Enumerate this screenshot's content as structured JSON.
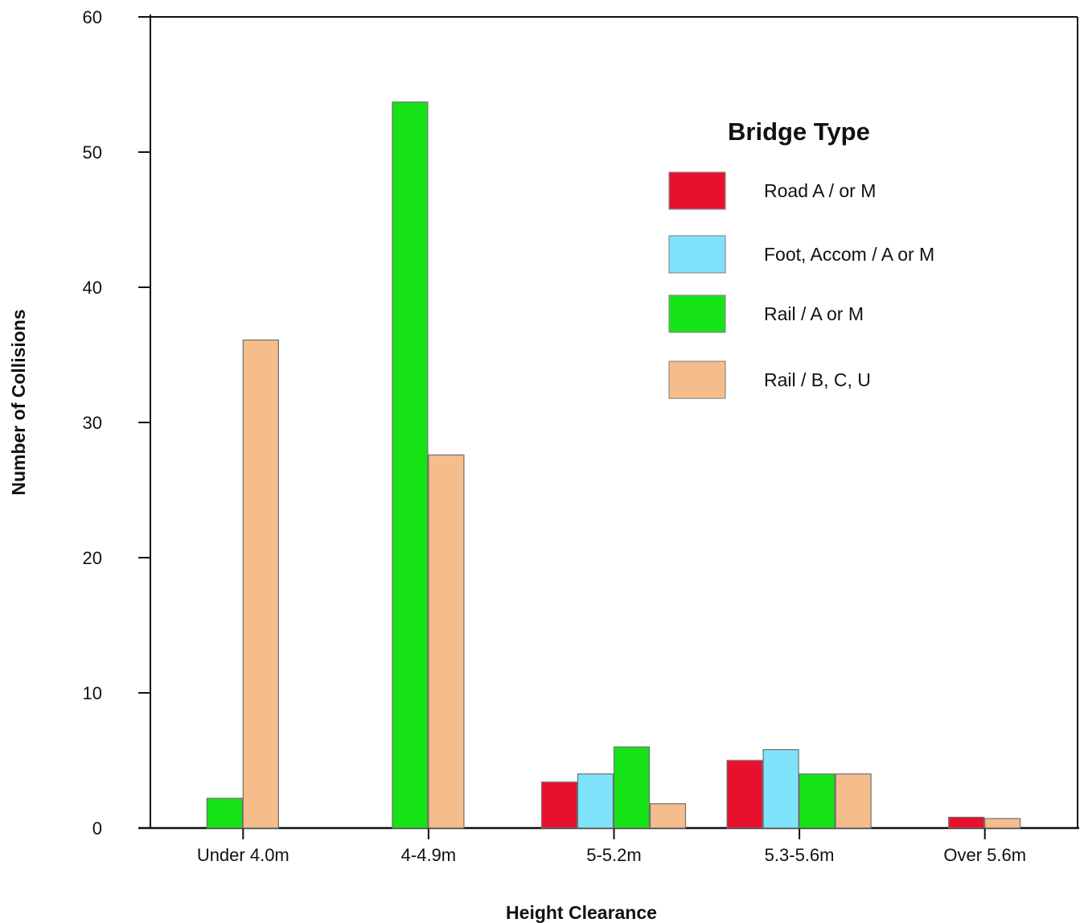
{
  "chart_data": {
    "type": "bar",
    "title": "",
    "xlabel": "Height Clearance",
    "ylabel": "Number of Collisions",
    "ylim": [
      0,
      60
    ],
    "yticks": [
      0,
      10,
      20,
      30,
      40,
      50,
      60
    ],
    "grid": false,
    "legend_placement": "top-right",
    "legend_title": "Bridge Type",
    "categories": [
      "Under 4.0m",
      "4-4.9m",
      "5-5.2m",
      "5.3-5.6m",
      "Over 5.6m"
    ],
    "series": [
      {
        "name": "Road A / or M",
        "color": "#e8112d",
        "values": [
          0,
          0,
          3.4,
          5,
          0.8
        ]
      },
      {
        "name": "Foot, Accom / A or M",
        "color": "#7fe3fb",
        "values": [
          0,
          0,
          4,
          5.8,
          0
        ]
      },
      {
        "name": "Rail / A or M",
        "color": "#15e315",
        "values": [
          2.2,
          53.7,
          6,
          4,
          0
        ]
      },
      {
        "name": "Rail / B, C, U",
        "color": "#f6bd8c",
        "values": [
          36.1,
          27.6,
          1.8,
          4,
          0.7
        ]
      }
    ]
  }
}
